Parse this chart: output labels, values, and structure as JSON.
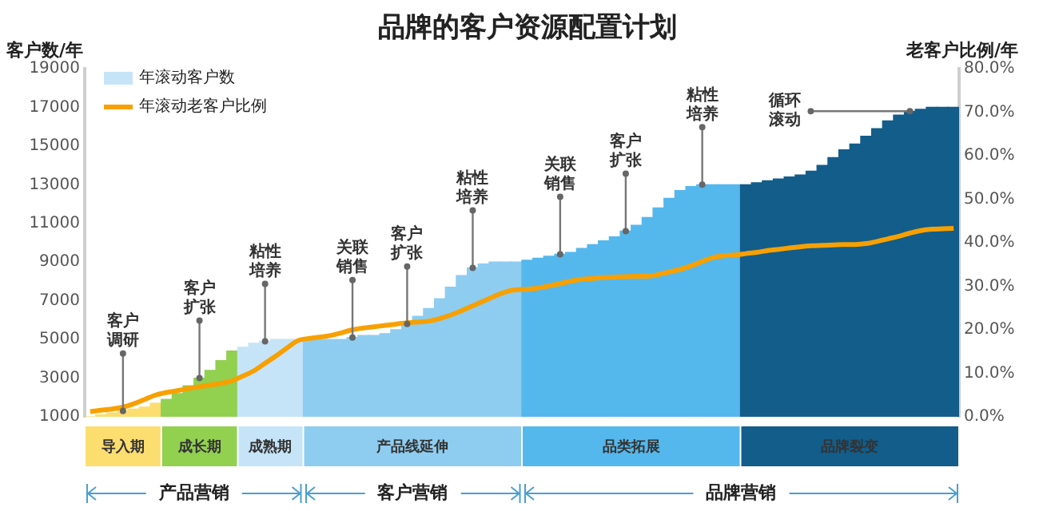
{
  "chart_data": {
    "type": "bar",
    "title": "品牌的客户资源配置计划",
    "ylabel": "客户数/年",
    "y2label": "老客户比例/年",
    "categories": [
      null,
      null,
      null,
      null,
      null,
      null,
      null,
      null,
      null,
      null,
      null,
      null,
      null,
      null,
      null,
      null,
      null,
      null,
      null,
      null,
      null,
      null,
      null,
      null,
      null,
      null,
      null,
      null,
      null,
      null,
      null,
      null,
      null,
      null,
      null,
      null,
      null,
      null,
      null,
      null,
      null,
      null,
      null,
      null,
      null,
      null,
      null,
      null,
      null,
      null,
      null,
      null,
      null,
      null,
      null,
      null,
      null,
      null,
      null,
      null,
      null,
      null,
      null,
      null,
      null,
      null,
      null,
      null,
      null,
      null,
      null,
      null,
      null,
      null,
      null,
      null,
      null,
      null,
      null,
      null
    ],
    "series": [
      {
        "name": "年滚动客户数",
        "color": "#c6e4f7",
        "colors": [
          "#fcdd6f",
          "#fcdd6f",
          "#fcdd6f",
          "#fcdd6f",
          "#fcdd6f",
          "#fcdd6f",
          "#fcdd6f",
          "#92d050",
          "#92d050",
          "#92d050",
          "#92d050",
          "#92d050",
          "#92d050",
          "#92d050",
          "#c6e4f7",
          "#c6e4f7",
          "#c6e4f7",
          "#c6e4f7",
          "#c6e4f7",
          "#c6e4f7",
          "#8ecdf0",
          "#8ecdf0",
          "#8ecdf0",
          "#8ecdf0",
          "#8ecdf0",
          "#8ecdf0",
          "#8ecdf0",
          "#8ecdf0",
          "#8ecdf0",
          "#8ecdf0",
          "#8ecdf0",
          "#8ecdf0",
          "#8ecdf0",
          "#8ecdf0",
          "#8ecdf0",
          "#8ecdf0",
          "#8ecdf0",
          "#8ecdf0",
          "#8ecdf0",
          "#8ecdf0",
          "#55b8ec",
          "#55b8ec",
          "#55b8ec",
          "#55b8ec",
          "#55b8ec",
          "#55b8ec",
          "#55b8ec",
          "#55b8ec",
          "#55b8ec",
          "#55b8ec",
          "#55b8ec",
          "#55b8ec",
          "#55b8ec",
          "#55b8ec",
          "#55b8ec",
          "#55b8ec",
          "#55b8ec",
          "#55b8ec",
          "#55b8ec",
          "#55b8ec",
          "#135d8a",
          "#135d8a",
          "#135d8a",
          "#135d8a",
          "#135d8a",
          "#135d8a",
          "#135d8a",
          "#135d8a",
          "#135d8a",
          "#135d8a",
          "#135d8a",
          "#135d8a",
          "#135d8a",
          "#135d8a",
          "#135d8a",
          "#135d8a",
          "#135d8a",
          "#135d8a",
          "#135d8a",
          "#135d8a"
        ],
        "values": [
          1000,
          1100,
          1200,
          1300,
          1400,
          1500,
          1700,
          1900,
          2200,
          2600,
          3000,
          3400,
          3900,
          4400,
          4600,
          4800,
          4900,
          5000,
          5000,
          5000,
          5000,
          5000,
          5000,
          5000,
          5100,
          5200,
          5200,
          5300,
          5500,
          5800,
          6200,
          6600,
          7100,
          7700,
          8300,
          8700,
          8900,
          9000,
          9000,
          9000,
          9100,
          9200,
          9300,
          9400,
          9500,
          9700,
          9900,
          10100,
          10300,
          10600,
          10900,
          11300,
          11800,
          12300,
          12700,
          12900,
          13000,
          13000,
          13000,
          13000,
          13000,
          13100,
          13200,
          13300,
          13400,
          13500,
          13700,
          14000,
          14400,
          14800,
          15100,
          15500,
          15900,
          16300,
          16600,
          16800,
          16900,
          17000,
          17000,
          17000
        ]
      },
      {
        "name": "年滚动老客户比例",
        "type": "line",
        "axis": "y2",
        "color": "#f7a000",
        "values": [
          1.2,
          1.5,
          1.8,
          2.2,
          3.0,
          4.0,
          5.0,
          5.6,
          6.0,
          6.5,
          6.9,
          7.3,
          7.7,
          8.3,
          9.4,
          10.6,
          12.3,
          14.0,
          15.8,
          17.5,
          18.0,
          18.3,
          18.7,
          19.3,
          20.0,
          20.4,
          20.7,
          21.0,
          21.3,
          21.6,
          21.8,
          22.0,
          22.6,
          23.4,
          24.4,
          25.5,
          26.6,
          27.7,
          28.7,
          29.2,
          29.3,
          29.6,
          30.1,
          30.6,
          31.2,
          31.6,
          31.8,
          32.0,
          32.1,
          32.2,
          32.3,
          32.3,
          32.7,
          33.3,
          33.9,
          34.7,
          35.7,
          36.6,
          37.0,
          37.2,
          37.5,
          37.8,
          38.2,
          38.5,
          38.8,
          39.1,
          39.3,
          39.4,
          39.5,
          39.6,
          39.6,
          39.8,
          40.3,
          40.9,
          41.5,
          42.2,
          42.8,
          43.1,
          43.2,
          43.3
        ]
      }
    ],
    "ylim": [
      1000,
      19000
    ],
    "yticks": [
      1000,
      3000,
      5000,
      7000,
      9000,
      11000,
      13000,
      15000,
      17000,
      19000
    ],
    "y2lim": [
      0,
      80
    ],
    "y2ticks": [
      {
        "value": 0,
        "label": "0.0%"
      },
      {
        "value": 10,
        "label": "10.0%"
      },
      {
        "value": 20,
        "label": "20.0%"
      },
      {
        "value": 30,
        "label": "30.0%"
      },
      {
        "value": 40,
        "label": "40.0%"
      },
      {
        "value": 50,
        "label": "50.0%"
      },
      {
        "value": 60,
        "label": "60.0%"
      },
      {
        "value": 70,
        "label": "70.0%"
      },
      {
        "value": 80,
        "label": "80.0%"
      }
    ],
    "grid": false,
    "legend": "top left",
    "annotations": [
      {
        "text": "客户调研",
        "y": 1300
      },
      {
        "text": "客户扩张",
        "y": 3000
      },
      {
        "text": "粘性培养",
        "y": 4900
      },
      {
        "text": "关联销售",
        "y": 5100
      },
      {
        "text": "客户扩张",
        "y": 5800
      },
      {
        "text": "粘性培养",
        "y": 8700
      },
      {
        "text": "关联销售",
        "y": 9400
      },
      {
        "text": "客户扩张",
        "y": 10600
      },
      {
        "text": "粘性培养",
        "y": 13000
      },
      "导入期",
      "成长期",
      "成熟期",
      "产品线延伸",
      "品类拓展",
      "品牌裂变",
      "产品营销",
      "客户营销",
      "品牌营销",
      "循环滚动"
    ]
  }
}
